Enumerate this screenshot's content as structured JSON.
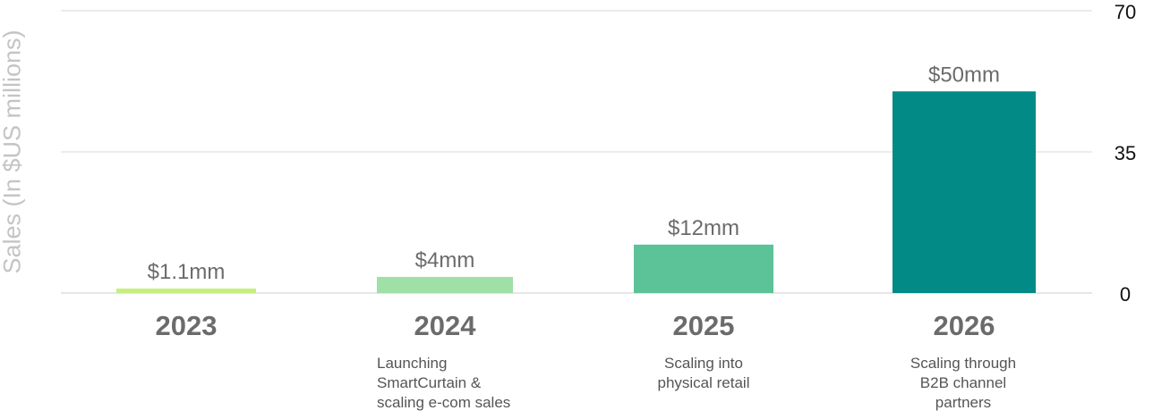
{
  "chart_data": {
    "type": "bar",
    "title": "",
    "xlabel": "",
    "ylabel": "Sales (In $US millions)",
    "ylim": [
      0,
      70
    ],
    "y_ticks": [
      "70",
      "35",
      "0"
    ],
    "y_axis_position": "right",
    "grid": true,
    "categories": [
      "2023",
      "2024",
      "2025",
      "2026"
    ],
    "values": [
      1.1,
      4,
      12,
      50
    ],
    "data_labels": [
      "$1.1mm",
      "$4mm",
      "$12mm",
      "$50mm"
    ],
    "category_notes": [
      [],
      [
        "Launching",
        "SmartCurtain &",
        "scaling e-com sales"
      ],
      [
        "Scaling into",
        "physical retail"
      ],
      [
        "Scaling through",
        "B2B channel",
        "partners"
      ]
    ],
    "colors": [
      "#c5f07f",
      "#9ee0a6",
      "#5cc298",
      "#028a87"
    ],
    "grid_color": "#e6e6e6",
    "label_color": "#6b6b6b"
  }
}
